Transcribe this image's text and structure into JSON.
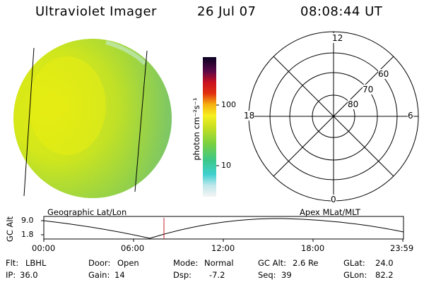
{
  "header": {
    "title": "Ultraviolet Imager",
    "date": "26 Jul 07",
    "time": "08:08:44 UT"
  },
  "colorbar": {
    "unit_label": "photon cm⁻²s⁻¹",
    "tick_100": "100",
    "tick_10": "10"
  },
  "polar_plot": {
    "mlt_labels": {
      "top": "12",
      "left": "18",
      "right": "6",
      "bottom": "0"
    },
    "lat_labels": [
      "60",
      "70",
      "80"
    ]
  },
  "map_labels": {
    "left": "Geographic Lat/Lon",
    "right": "Apex MLat/MLT"
  },
  "altitude_strip": {
    "axis_label": "GC Alt",
    "y_max": "9.0",
    "y_min": "1.8",
    "time_ticks": [
      "00:00",
      "06:00",
      "12:00",
      "18:00",
      "23:59"
    ],
    "marker_color": "#c0202a"
  },
  "status": {
    "row1": {
      "flt_key": "Flt:",
      "flt_val": "LBHL",
      "door_key": "Door:",
      "door_val": "Open",
      "mode_key": "Mode:",
      "mode_val": "Normal",
      "gcalt_key": "GC Alt:",
      "gcalt_val": "2.6 Re",
      "glat_key": "GLat:",
      "glat_val": "24.0"
    },
    "row2": {
      "ip_key": "IP:",
      "ip_val": "36.0",
      "gain_key": "Gain:",
      "gain_val": "14",
      "dsp_key": "Dsp:",
      "dsp_val": "-7.2",
      "seq_key": "Seq:",
      "seq_val": "39",
      "glon_key": "GLon:",
      "glon_val": "82.2"
    }
  }
}
